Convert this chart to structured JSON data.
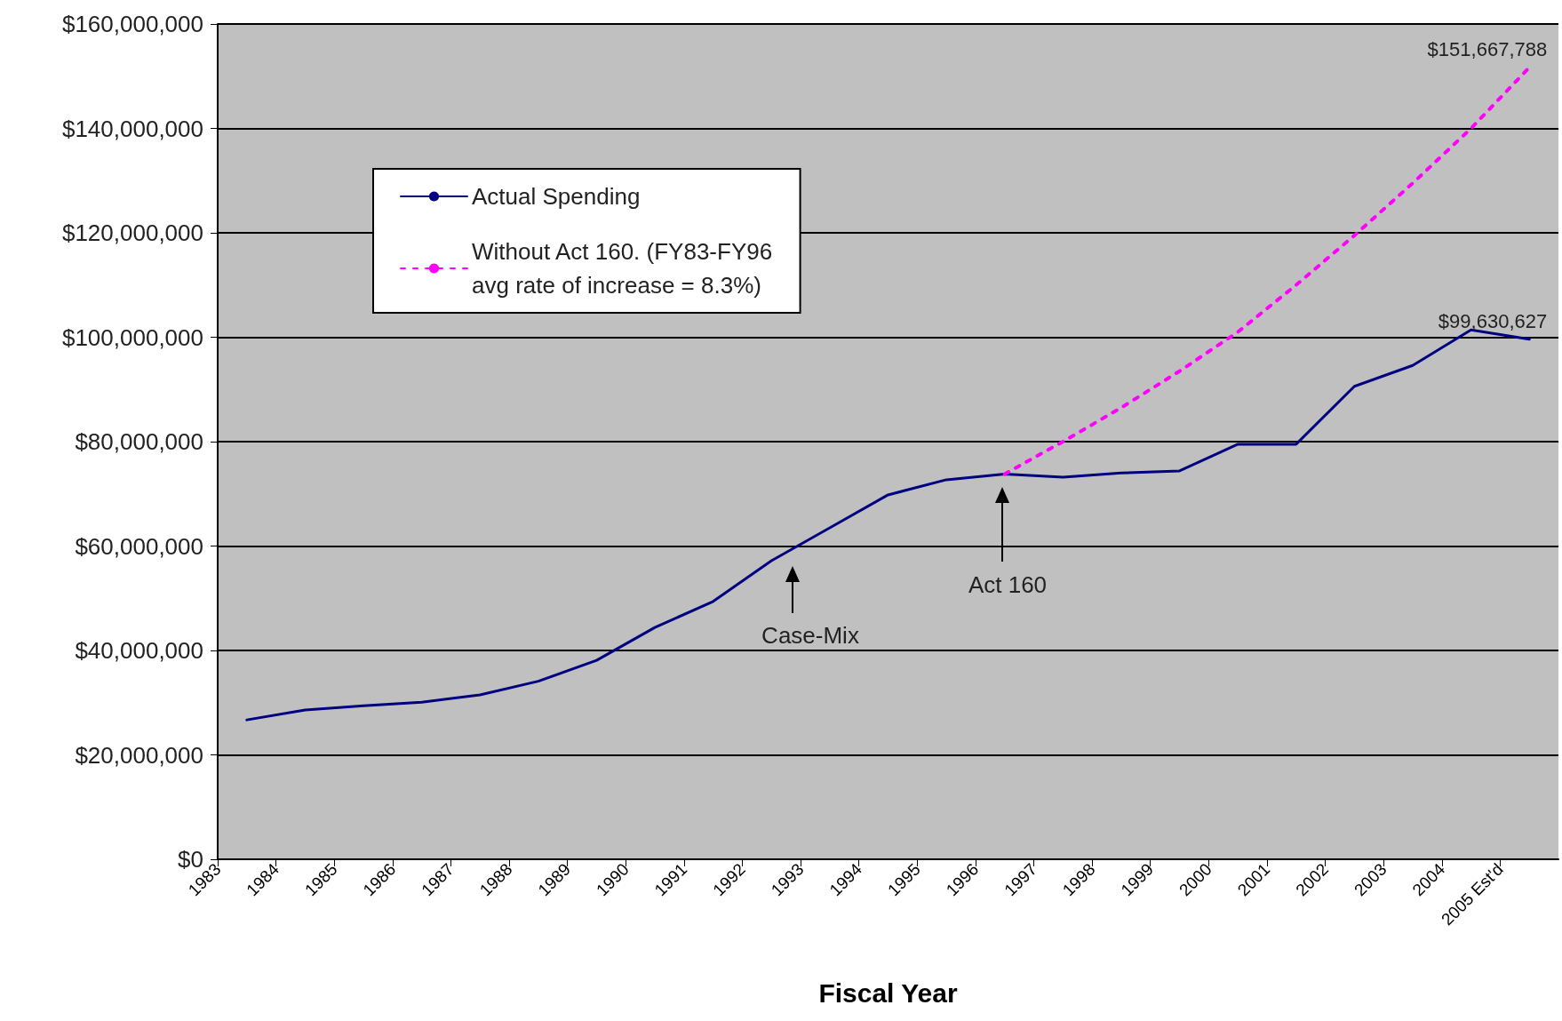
{
  "chart_data": {
    "type": "line",
    "xlabel": "Fiscal Year",
    "x": [
      1983.5,
      1984.5,
      1985.5,
      1986.5,
      1987.5,
      1988.5,
      1989.5,
      1990.5,
      1991.5,
      1992.5,
      1993.5,
      1994.5,
      1995.5,
      1996.5,
      1997.5,
      1998.5,
      1999.5,
      2000.5,
      2001.5,
      2002.5,
      2003.5,
      2004.5,
      2005.5
    ],
    "series": [
      {
        "name": "Actual Spending",
        "color": "#000080",
        "line_style": "solid",
        "values": [
          26700000,
          28600000,
          29400000,
          30100000,
          31500000,
          34100000,
          38100000,
          44400000,
          49400000,
          57200000,
          63500000,
          69800000,
          72700000,
          73800000,
          73200000,
          74000000,
          74400000,
          79500000,
          79500000,
          90600000,
          94600000,
          101400000,
          99630627
        ],
        "value_labels": [
          null,
          null,
          null,
          null,
          null,
          null,
          null,
          null,
          null,
          null,
          null,
          null,
          null,
          null,
          null,
          null,
          null,
          null,
          null,
          null,
          null,
          null,
          "$99,630,627"
        ]
      },
      {
        "name": "Without Act 160. (FY83-FY96\navg rate of increase = 8.3%)",
        "color": "#ff00ff",
        "line_style": "dotted",
        "x": [
          1996.5,
          1997.5,
          1998.5,
          1999.5,
          2000.5,
          2001.5,
          2002.5,
          2003.5,
          2004.5,
          2005.5
        ],
        "values": [
          73800000,
          80000000,
          86500000,
          93500000,
          101000000,
          110000000,
          119500000,
          129500000,
          140000000,
          151667788
        ],
        "value_labels": [
          null,
          null,
          null,
          null,
          null,
          null,
          null,
          null,
          null,
          "$151,667,788"
        ]
      }
    ],
    "xlim": [
      1983,
      2006
    ],
    "xticks": [
      1983,
      1984,
      1985,
      1986,
      1987,
      1988,
      1989,
      1990,
      1991,
      1992,
      1993,
      1994,
      1995,
      1996,
      1997,
      1998,
      1999,
      2000,
      2001,
      2002,
      2003,
      2004,
      {
        "value": 2005,
        "label": "2005 Est'd"
      }
    ],
    "ylim": [
      0,
      160000000
    ],
    "yticks": [
      {
        "value": 0,
        "label": "$0"
      },
      {
        "value": 20000000,
        "label": "$20,000,000"
      },
      {
        "value": 40000000,
        "label": "$40,000,000"
      },
      {
        "value": 60000000,
        "label": "$60,000,000"
      },
      {
        "value": 80000000,
        "label": "$80,000,000"
      },
      {
        "value": 100000000,
        "label": "$100,000,000"
      },
      {
        "value": 120000000,
        "label": "$120,000,000"
      },
      {
        "value": 140000000,
        "label": "$140,000,000"
      },
      {
        "value": 160000000,
        "label": "$160,000,000"
      }
    ],
    "annotations": [
      "Case-Mix",
      "Act 160"
    ],
    "grid": "y",
    "legend": "top left",
    "marker": "none"
  }
}
